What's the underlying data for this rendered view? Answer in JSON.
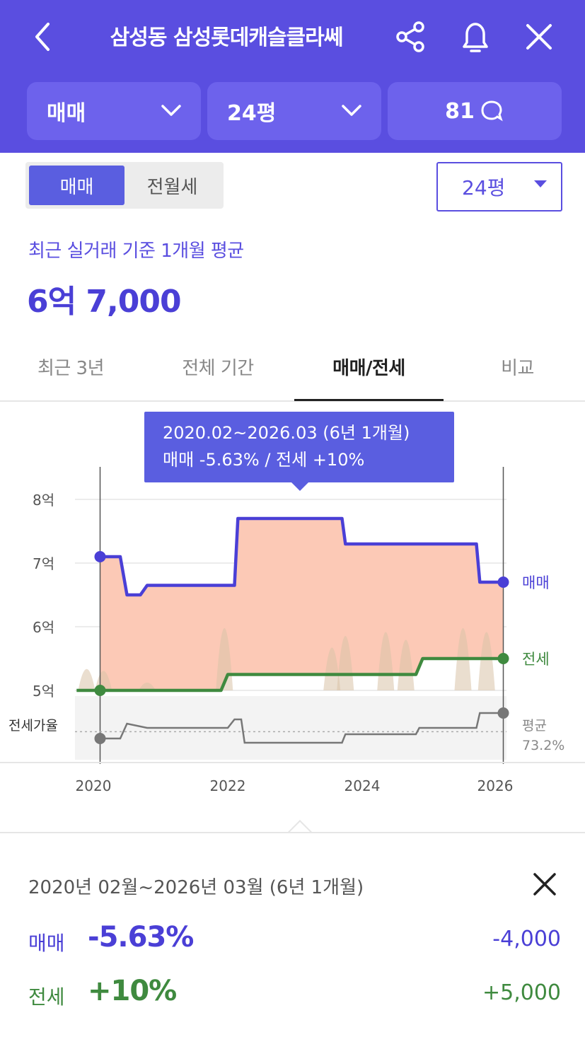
{
  "header": {
    "title": "삼성동 삼성롯데캐슬클라쎄",
    "deal_select": "매매",
    "area_select": "24평",
    "comment_count": "81"
  },
  "toggle": {
    "active": "매매",
    "inactive": "전월세"
  },
  "size_select": "24평",
  "average": {
    "label": "최근 실거래 기준 1개월 평균",
    "value": "6억 7,000"
  },
  "tabs": [
    {
      "label": "최근 3년"
    },
    {
      "label": "전체 기간"
    },
    {
      "label": "매매/전세",
      "active": true
    },
    {
      "label": "비교"
    }
  ],
  "tooltip": {
    "period": "2020.02~2026.03 (6년 1개월)",
    "change": "매매 -5.63%  /  전세 +10%"
  },
  "chart_data": {
    "type": "line",
    "y_axis": {
      "ticks": [
        "8억",
        "7억",
        "6억",
        "5억"
      ],
      "unit": "억",
      "range": [
        4.7,
        8.3
      ]
    },
    "x_axis": {
      "ticks": [
        "2020",
        "2022",
        "2024",
        "2026"
      ]
    },
    "series": [
      {
        "name": "매매",
        "color": "#4a3fd6",
        "points": [
          [
            2020.1,
            7.1
          ],
          [
            2020.4,
            7.1
          ],
          [
            2020.5,
            6.5
          ],
          [
            2020.7,
            6.5
          ],
          [
            2020.8,
            6.65
          ],
          [
            2022.1,
            6.65
          ],
          [
            2022.15,
            7.7
          ],
          [
            2023.7,
            7.7
          ],
          [
            2023.75,
            7.3
          ],
          [
            2025.7,
            7.3
          ],
          [
            2025.75,
            6.7
          ],
          [
            2026.1,
            6.7
          ]
        ]
      },
      {
        "name": "전세",
        "color": "#3f8a3f",
        "points": [
          [
            2019.75,
            5.0
          ],
          [
            2021.9,
            5.0
          ],
          [
            2022.0,
            5.25
          ],
          [
            2024.8,
            5.25
          ],
          [
            2024.9,
            5.5
          ],
          [
            2026.1,
            5.5
          ]
        ]
      }
    ],
    "ratio_label": "전세가율",
    "ratio_avg_label": "평균",
    "ratio_avg_value": "73.2%",
    "ratio_points": [
      [
        2020.1,
        0.7
      ],
      [
        2020.4,
        0.7
      ],
      [
        2020.5,
        0.77
      ],
      [
        2020.8,
        0.75
      ],
      [
        2022.0,
        0.75
      ],
      [
        2022.1,
        0.79
      ],
      [
        2022.2,
        0.79
      ],
      [
        2022.25,
        0.68
      ],
      [
        2023.7,
        0.68
      ],
      [
        2023.75,
        0.72
      ],
      [
        2024.8,
        0.72
      ],
      [
        2024.85,
        0.75
      ],
      [
        2025.7,
        0.75
      ],
      [
        2025.75,
        0.82
      ],
      [
        2026.1,
        0.82
      ]
    ],
    "ratio_avg": 0.732,
    "marker_start": 2020.1,
    "marker_end": 2026.1
  },
  "summary": {
    "period": "2020년 02월~2026년 03월 (6년 1개월)",
    "sale": {
      "label": "매매",
      "pct": "-5.63%",
      "amount": "-4,000"
    },
    "jeonse": {
      "label": "전세",
      "pct": "+10%",
      "amount": "+5,000"
    }
  },
  "colors": {
    "primary": "#5a4ee0",
    "sale": "#4a3fd6",
    "jeonse": "#3f8a3f",
    "fill": "#fcc9b6"
  }
}
